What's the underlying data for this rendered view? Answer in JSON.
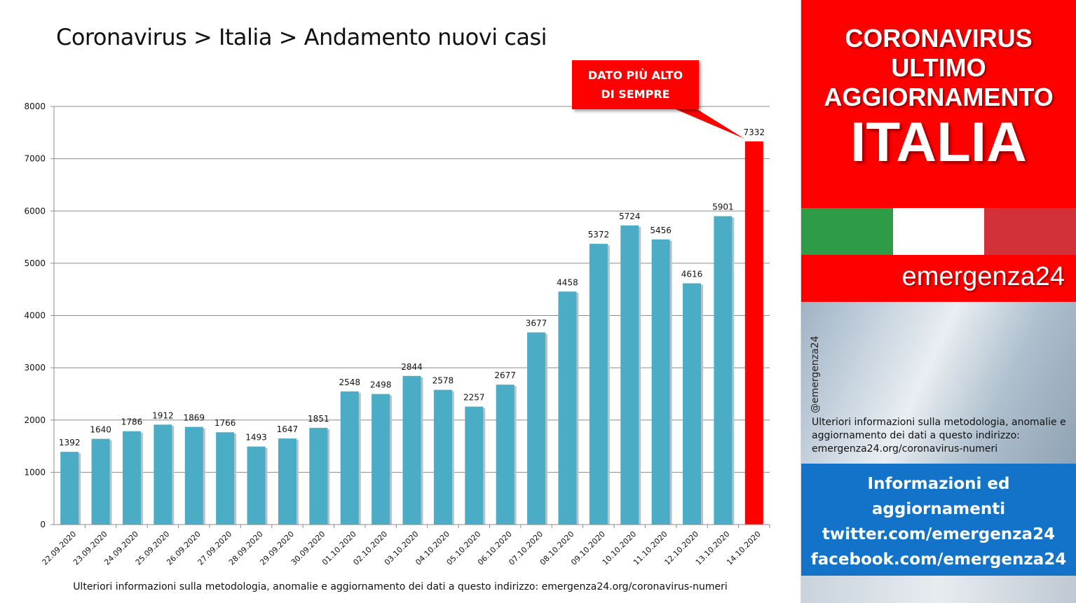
{
  "title": "Coronavirus > Italia > Andamento nuovi casi",
  "footnote": "Ulteriori informazioni sulla metodologia, anomalie e aggiornamento dei dati a questo indirizzo: emergenza24.org/coronavirus-numeri",
  "callout": {
    "line1": "DATO PIÙ ALTO",
    "line2": "DI SEMPRE"
  },
  "colors": {
    "bar": "#4bacc6",
    "highlight_bar": "#ff0000",
    "panel_red": "#ff0000",
    "panel_blue": "#1273c9",
    "flag_green": "#2e9b47",
    "flag_white": "#ffffff",
    "flag_red": "#d3313a"
  },
  "chart_data": {
    "type": "bar",
    "categories": [
      "22.09.2020",
      "23.09.2020",
      "24.09.2020",
      "25.09.2020",
      "26.09.2020",
      "27.09.2020",
      "28.09.2020",
      "29.09.2020",
      "30.09.2020",
      "01.10.2020",
      "02.10.2020",
      "03.10.2020",
      "04.10.2020",
      "05.10.2020",
      "06.10.2020",
      "07.10.2020",
      "08.10.2020",
      "09.10.2020",
      "10.10.2020",
      "11.10.2020",
      "12.10.2020",
      "13.10.2020",
      "14.10.2020"
    ],
    "values": [
      1392,
      1640,
      1786,
      1912,
      1869,
      1766,
      1493,
      1647,
      1851,
      2548,
      2498,
      2844,
      2578,
      2257,
      2677,
      3677,
      4458,
      5372,
      5724,
      5456,
      4616,
      5901,
      7332
    ],
    "highlight_index": 22,
    "ylim": [
      0,
      8000
    ],
    "yticks": [
      0,
      1000,
      2000,
      3000,
      4000,
      5000,
      6000,
      7000,
      8000
    ],
    "grid": true,
    "data_labels": true
  },
  "panel": {
    "line1": "CORONAVIRUS",
    "line2": "ULTIMO",
    "line3": "AGGIORNAMENTO",
    "big": "ITALIA",
    "brand": "emergenza24",
    "handle": "@emergenza24",
    "note": "Ulteriori informazioni sulla metodologia, anomalie e aggiornamento dei dati a questo indirizzo: emergenza24.org/coronavirus-numeri",
    "info1": "Informazioni ed",
    "info2": "aggiornamenti",
    "info3": "twitter.com/emergenza24",
    "info4": "facebook.com/emergenza24"
  }
}
